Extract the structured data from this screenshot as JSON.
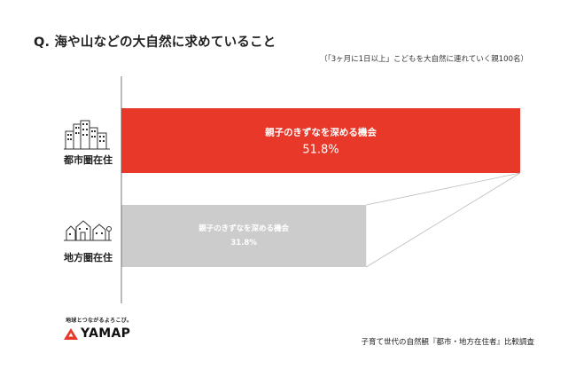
{
  "title": "Q. 海や山などの大自然に求めていること",
  "subtitle": "（「3ヶ月に1日以上」こどもを大自然に連れていく親100名）",
  "rows": [
    {
      "label": "都市圏在住",
      "icon": "city-buildings-icon"
    },
    {
      "label": "地方圏在住",
      "icon": "rural-house-trees-icon"
    }
  ],
  "chart_data": {
    "type": "bar",
    "orientation": "horizontal",
    "categories": [
      "都市圏在住",
      "地方圏在住"
    ],
    "bar_labels": [
      "親子のきずなを深める機会",
      "親子のきずなを深める機会"
    ],
    "values": [
      51.8,
      31.8
    ],
    "value_labels": [
      "51.8%",
      "31.8%"
    ],
    "xlim": [
      0,
      60
    ],
    "grid": false,
    "colors": [
      "#e8382a",
      "#cccccc"
    ]
  },
  "brand": {
    "tagline": "地球とつながるよろこび。",
    "name": "YAMAP",
    "icon": "mountain-logo-icon",
    "color": "#e8382a"
  },
  "footer_note": "子育て世代の自然観『都市・地方在住者』比較調査"
}
